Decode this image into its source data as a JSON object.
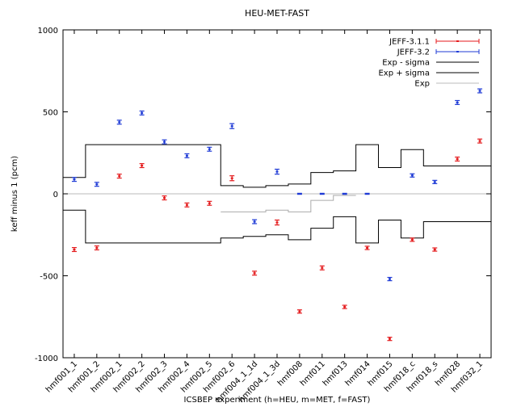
{
  "chart_data": {
    "type": "scatter",
    "title": "HEU-MET-FAST",
    "xlabel": "ICSBEP experiment (h=HEU, m=MET, f=FAST)",
    "ylabel": "keff minus 1 (pcm)",
    "ylim": [
      -1000,
      1000
    ],
    "yticks": [
      1000,
      500,
      0,
      -500,
      -1000
    ],
    "grid": false,
    "legend_position": "top-right",
    "categories": [
      "hmf001_1",
      "hmf001_2",
      "hmf002_1",
      "hmf002_2",
      "hmf002_3",
      "hmf002_4",
      "hmf002_5",
      "hmf002_6",
      "hmf004_1_1d",
      "hmf004_1_3d",
      "hmf008",
      "hmf011",
      "hmf013",
      "hmf014",
      "hmf015",
      "hmf018_c",
      "hmf018_s",
      "hmf028",
      "hmf032_1"
    ],
    "series": [
      {
        "name": "JEFF-3.1.1",
        "color": "#e41a1c",
        "values": [
          -340,
          -330,
          108,
          172,
          -25,
          -68,
          -58,
          95,
          -484,
          -175,
          -718,
          -452,
          -690,
          -330,
          -885,
          -280,
          -340,
          212,
          322
        ],
        "errors": [
          12,
          12,
          12,
          12,
          12,
          12,
          12,
          15,
          12,
          15,
          10,
          12,
          10,
          10,
          10,
          10,
          10,
          12,
          12
        ]
      },
      {
        "name": "JEFF-3.2",
        "color": "#1f3bd6",
        "values": [
          88,
          58,
          437,
          493,
          317,
          232,
          272,
          413,
          -170,
          135,
          0,
          0,
          0,
          0,
          -520,
          112,
          72,
          557,
          628
        ],
        "errors": [
          12,
          12,
          12,
          12,
          12,
          12,
          12,
          15,
          12,
          15,
          3,
          3,
          3,
          3,
          10,
          10,
          10,
          12,
          12
        ]
      }
    ],
    "step_lines": [
      {
        "name": "Exp - sigma",
        "color": "#000000",
        "boundaries": [
          0,
          1,
          6,
          7,
          8,
          9,
          10,
          11,
          12,
          13,
          14,
          15,
          16,
          17,
          19
        ],
        "levels": [
          -100,
          -300,
          -300,
          -270,
          -260,
          -250,
          -280,
          -210,
          -140,
          -300,
          -160,
          -270,
          -170,
          -170
        ]
      },
      {
        "name": "Exp + sigma",
        "color": "#000000",
        "boundaries": [
          0,
          1,
          6,
          7,
          8,
          9,
          10,
          11,
          12,
          13,
          14,
          15,
          16,
          17,
          19
        ],
        "levels": [
          100,
          300,
          300,
          50,
          40,
          50,
          60,
          130,
          140,
          300,
          160,
          270,
          170,
          170
        ]
      },
      {
        "name": "Exp",
        "color": "#bbbbbb",
        "boundaries": [
          0,
          19
        ],
        "levels": [
          0
        ]
      }
    ],
    "inner_steps": [
      {
        "color": "#aaaaaa",
        "boundaries": [
          7,
          9,
          10,
          11,
          12,
          13
        ],
        "levels": [
          -110,
          -100,
          -110,
          -40,
          -10
        ]
      }
    ],
    "legend": {
      "entries": [
        "JEFF-3.1.1",
        "JEFF-3.2",
        "Exp - sigma",
        "Exp + sigma",
        "Exp"
      ]
    }
  }
}
